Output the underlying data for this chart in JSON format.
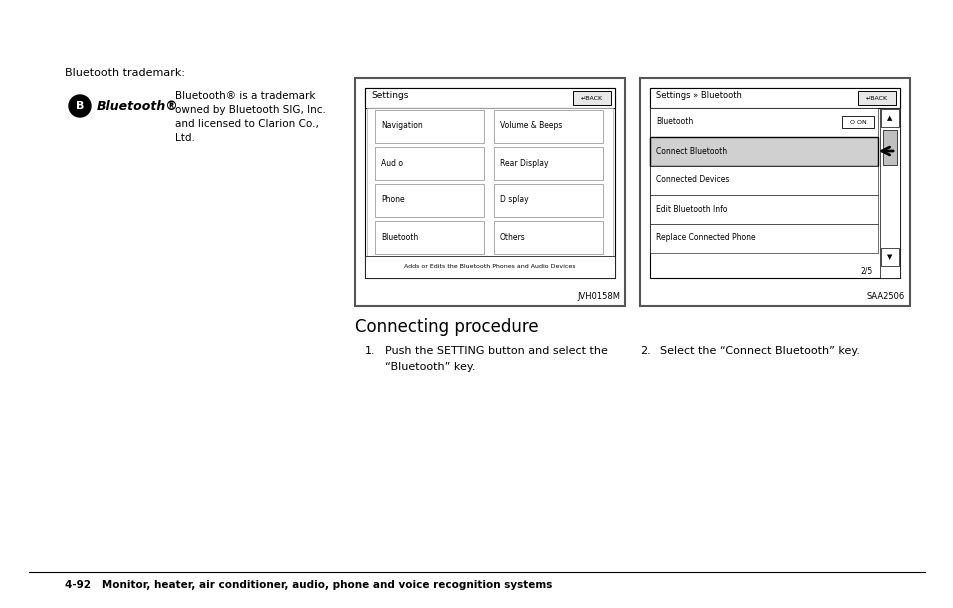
{
  "bg_color": "#ffffff",
  "page_width": 9.54,
  "page_height": 6.08,
  "dpi": 100,
  "bluetooth_trademark_label": "Bluetooth trademark:",
  "bluetooth_logo_text": "Bluetooth®",
  "bluetooth_desc_line1": "Bluetooth® is a trademark",
  "bluetooth_desc_line2": "owned by Bluetooth SIG, Inc.",
  "bluetooth_desc_line3": "and licensed to Clarion Co.,",
  "bluetooth_desc_line4": "Ltd.",
  "screen1_title": "Settings",
  "screen1_back": "BACK",
  "screen1_items_left": [
    "Navigation",
    "Aud o",
    "Phone",
    "Bluetooth"
  ],
  "screen1_items_right": [
    "Volume & Beeps",
    "Rear Display",
    "D splay",
    "Others"
  ],
  "screen1_footer": "Adds or Edits the Bluetooth Phones and Audio Devices",
  "screen1_code": "JVH0158M",
  "screen2_title": "Settings » Bluetooth",
  "screen2_back": "BACK",
  "screen2_items": [
    "Bluetooth",
    "Connect Bluetooth",
    "Connected Devices",
    "Edit Bluetooth Info",
    "Replace Connected Phone"
  ],
  "screen2_bluetooth_status": "O ON",
  "screen2_selected_index": 1,
  "screen2_page": "2/5",
  "screen2_code": "SAA2506",
  "connecting_title": "Connecting procedure",
  "step1_prefix": "1.",
  "step1": "Push the SETTING button and select the",
  "step1b": "“Bluetooth” key.",
  "step2_num": "2.",
  "step2": "Select the “Connect Bluetooth” key.",
  "footer_text": "4-92   Monitor, heater, air conditioner, audio, phone and voice recognition systems"
}
